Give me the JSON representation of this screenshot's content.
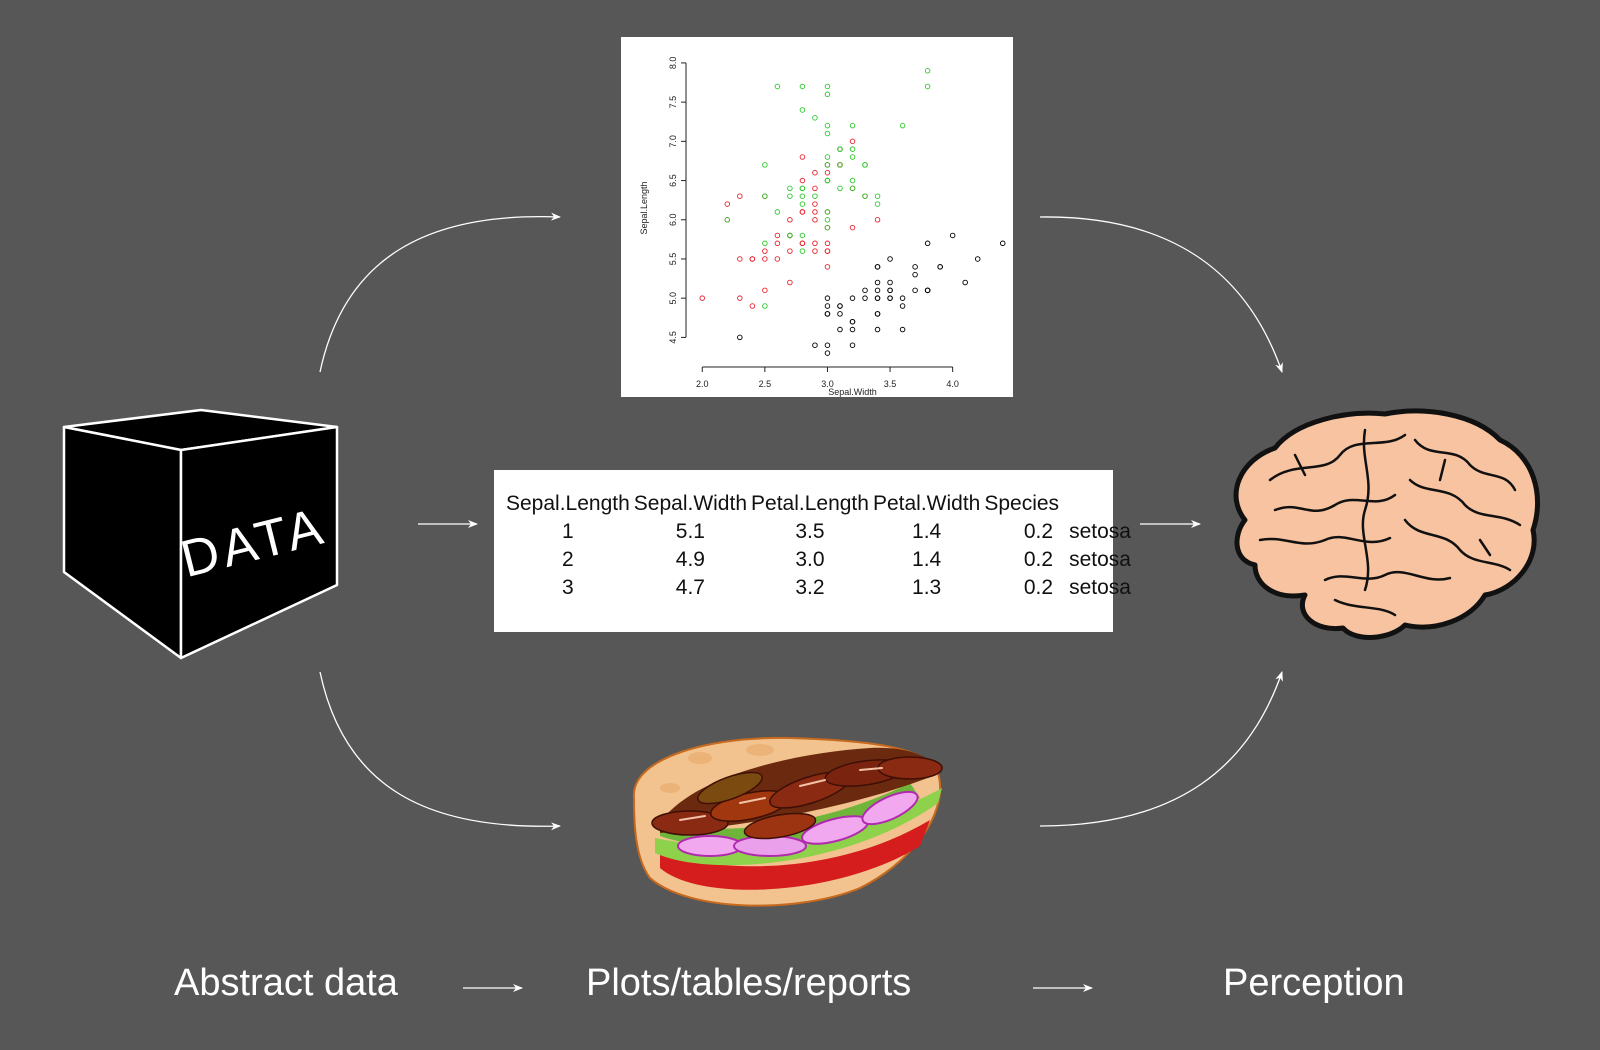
{
  "cube": {
    "label": "DATA"
  },
  "captions": {
    "abstract": "Abstract data",
    "plots": "Plots/tables/reports",
    "perception": "Perception"
  },
  "table": {
    "headers": [
      "Sepal.Length",
      "Sepal.Width",
      "Petal.Length",
      "Petal.Width",
      "Species"
    ],
    "rows": [
      {
        "index": "1",
        "sepal_length": "5.1",
        "sepal_width": "3.5",
        "petal_length": "1.4",
        "petal_width": "0.2",
        "species": "setosa"
      },
      {
        "index": "2",
        "sepal_length": "4.9",
        "sepal_width": "3.0",
        "petal_length": "1.4",
        "petal_width": "0.2",
        "species": "setosa"
      },
      {
        "index": "3",
        "sepal_length": "4.7",
        "sepal_width": "3.2",
        "petal_length": "1.3",
        "petal_width": "0.2",
        "species": "setosa"
      }
    ]
  },
  "chart_data": {
    "type": "scatter",
    "title": "",
    "xlabel": "Sepal.Width",
    "ylabel": "Sepal.Length",
    "xlim": [
      2.0,
      4.4
    ],
    "ylim": [
      4.3,
      7.9
    ],
    "xticks": [
      "2.0",
      "2.5",
      "3.0",
      "3.5",
      "4.0"
    ],
    "yticks": [
      "4.5",
      "5.0",
      "5.5",
      "6.0",
      "6.5",
      "7.0",
      "7.5",
      "8.0"
    ],
    "grid": false,
    "series": [
      {
        "color": "#000000",
        "points": [
          [
            3.5,
            5.1
          ],
          [
            3.0,
            4.9
          ],
          [
            3.2,
            4.7
          ],
          [
            3.1,
            4.6
          ],
          [
            3.6,
            5.0
          ],
          [
            3.9,
            5.4
          ],
          [
            3.4,
            4.6
          ],
          [
            3.4,
            5.0
          ],
          [
            2.9,
            4.4
          ],
          [
            3.1,
            4.9
          ],
          [
            3.7,
            5.4
          ],
          [
            3.4,
            4.8
          ],
          [
            3.0,
            4.8
          ],
          [
            3.0,
            4.3
          ],
          [
            4.0,
            5.8
          ],
          [
            4.4,
            5.7
          ],
          [
            3.9,
            5.4
          ],
          [
            3.5,
            5.1
          ],
          [
            3.8,
            5.7
          ],
          [
            3.8,
            5.1
          ],
          [
            3.4,
            5.4
          ],
          [
            3.7,
            5.1
          ],
          [
            3.6,
            4.6
          ],
          [
            3.3,
            5.1
          ],
          [
            3.4,
            4.8
          ],
          [
            3.0,
            5.0
          ],
          [
            3.4,
            5.0
          ],
          [
            3.5,
            5.2
          ],
          [
            3.4,
            5.2
          ],
          [
            3.2,
            4.7
          ],
          [
            3.1,
            4.8
          ],
          [
            3.4,
            5.4
          ],
          [
            4.1,
            5.2
          ],
          [
            4.2,
            5.5
          ],
          [
            3.1,
            4.9
          ],
          [
            3.2,
            5.0
          ],
          [
            3.5,
            5.5
          ],
          [
            3.6,
            4.9
          ],
          [
            3.0,
            4.4
          ],
          [
            3.4,
            5.1
          ],
          [
            3.5,
            5.0
          ],
          [
            2.3,
            4.5
          ],
          [
            3.2,
            4.4
          ],
          [
            3.5,
            5.0
          ],
          [
            3.8,
            5.1
          ],
          [
            3.0,
            4.8
          ],
          [
            3.8,
            5.1
          ],
          [
            3.2,
            4.6
          ],
          [
            3.7,
            5.3
          ],
          [
            3.3,
            5.0
          ]
        ]
      },
      {
        "color": "#e8242f",
        "points": [
          [
            3.2,
            7.0
          ],
          [
            3.2,
            6.4
          ],
          [
            3.1,
            6.9
          ],
          [
            2.3,
            5.5
          ],
          [
            2.8,
            6.5
          ],
          [
            2.8,
            5.7
          ],
          [
            3.3,
            6.3
          ],
          [
            2.4,
            4.9
          ],
          [
            2.9,
            6.6
          ],
          [
            2.7,
            5.2
          ],
          [
            2.0,
            5.0
          ],
          [
            3.0,
            5.9
          ],
          [
            2.2,
            6.0
          ],
          [
            2.9,
            6.1
          ],
          [
            2.9,
            5.6
          ],
          [
            3.1,
            6.7
          ],
          [
            3.0,
            5.6
          ],
          [
            2.7,
            5.8
          ],
          [
            2.2,
            6.2
          ],
          [
            2.5,
            5.6
          ],
          [
            3.2,
            5.9
          ],
          [
            2.8,
            6.1
          ],
          [
            2.5,
            6.3
          ],
          [
            2.8,
            6.1
          ],
          [
            2.9,
            6.4
          ],
          [
            3.0,
            6.6
          ],
          [
            2.8,
            6.8
          ],
          [
            3.0,
            6.7
          ],
          [
            2.9,
            6.0
          ],
          [
            2.6,
            5.7
          ],
          [
            2.4,
            5.5
          ],
          [
            2.4,
            5.5
          ],
          [
            2.7,
            5.8
          ],
          [
            2.7,
            6.0
          ],
          [
            3.0,
            5.4
          ],
          [
            3.4,
            6.0
          ],
          [
            3.1,
            6.7
          ],
          [
            2.3,
            6.3
          ],
          [
            3.0,
            5.6
          ],
          [
            2.5,
            5.5
          ],
          [
            2.6,
            5.5
          ],
          [
            3.0,
            6.1
          ],
          [
            2.6,
            5.8
          ],
          [
            2.3,
            5.0
          ],
          [
            2.7,
            5.6
          ],
          [
            3.0,
            5.7
          ],
          [
            2.9,
            5.7
          ],
          [
            2.9,
            6.2
          ],
          [
            2.5,
            5.1
          ],
          [
            2.8,
            5.7
          ]
        ]
      },
      {
        "color": "#2fc92f",
        "points": [
          [
            3.3,
            6.3
          ],
          [
            2.7,
            5.8
          ],
          [
            3.0,
            7.1
          ],
          [
            2.9,
            6.3
          ],
          [
            3.0,
            6.5
          ],
          [
            3.0,
            7.6
          ],
          [
            2.5,
            4.9
          ],
          [
            2.9,
            7.3
          ],
          [
            2.5,
            6.7
          ],
          [
            3.6,
            7.2
          ],
          [
            3.2,
            6.5
          ],
          [
            2.7,
            6.4
          ],
          [
            3.0,
            6.8
          ],
          [
            2.5,
            5.7
          ],
          [
            2.8,
            5.8
          ],
          [
            3.2,
            6.4
          ],
          [
            3.0,
            6.5
          ],
          [
            3.8,
            7.7
          ],
          [
            2.6,
            7.7
          ],
          [
            2.2,
            6.0
          ],
          [
            3.2,
            6.9
          ],
          [
            2.8,
            5.6
          ],
          [
            2.8,
            7.7
          ],
          [
            2.7,
            6.3
          ],
          [
            3.3,
            6.7
          ],
          [
            3.2,
            7.2
          ],
          [
            2.8,
            6.2
          ],
          [
            3.0,
            6.1
          ],
          [
            2.8,
            6.4
          ],
          [
            3.0,
            7.2
          ],
          [
            2.8,
            7.4
          ],
          [
            3.8,
            7.9
          ],
          [
            2.8,
            6.4
          ],
          [
            2.8,
            6.3
          ],
          [
            2.6,
            6.1
          ],
          [
            3.0,
            7.7
          ],
          [
            3.4,
            6.3
          ],
          [
            3.1,
            6.4
          ],
          [
            3.0,
            6.0
          ],
          [
            3.1,
            6.9
          ],
          [
            3.1,
            6.7
          ],
          [
            3.1,
            6.9
          ],
          [
            2.7,
            5.8
          ],
          [
            3.2,
            6.8
          ],
          [
            3.3,
            6.7
          ],
          [
            3.0,
            6.7
          ],
          [
            2.5,
            6.3
          ],
          [
            3.0,
            6.5
          ],
          [
            3.4,
            6.2
          ],
          [
            3.0,
            5.9
          ]
        ]
      }
    ]
  }
}
